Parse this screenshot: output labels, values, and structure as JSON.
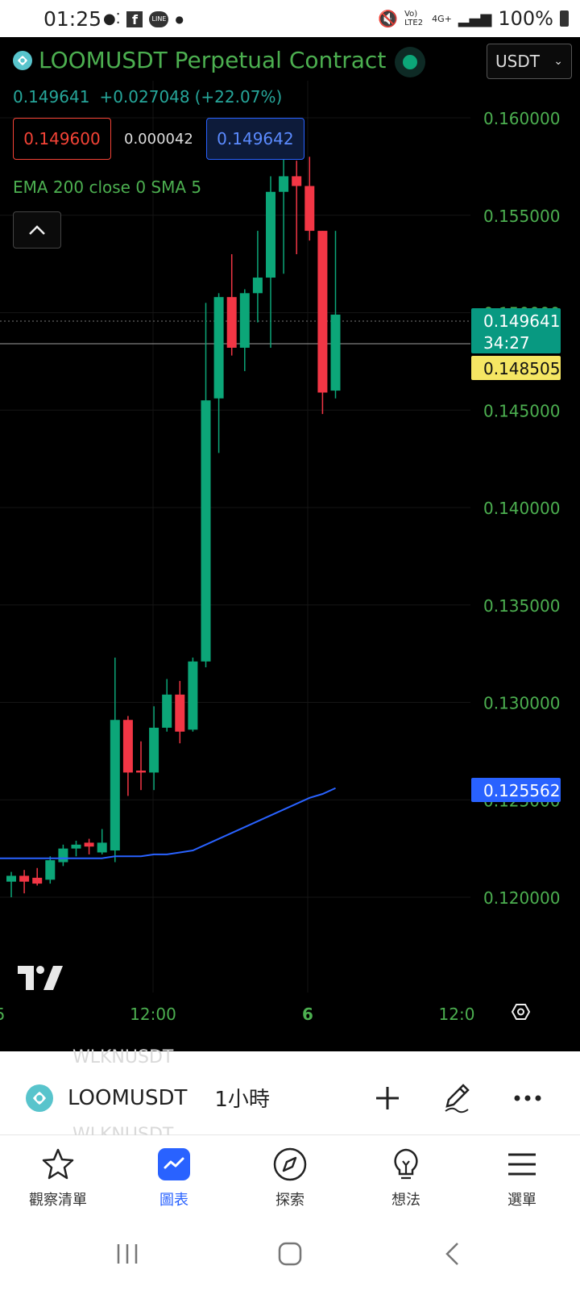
{
  "status_bar": {
    "time": "01:25",
    "signal_label": "Vo) LTE2",
    "network_label": "4G+",
    "battery": "100%"
  },
  "header": {
    "title": "LOOMUSDT Perpetual Contract",
    "currency": "USDT",
    "last_price": "0.149641",
    "change": "+0.027048",
    "change_pct": "(+22.07%)",
    "bid": "0.149600",
    "spread": "0.000042",
    "ask": "0.149642",
    "indicator": "EMA 200 close 0 SMA 5"
  },
  "chart_data": {
    "type": "candlestick",
    "price_axis": [
      "0.160000",
      "0.155000",
      "0.150000",
      "0.145000",
      "0.140000",
      "0.135000",
      "0.130000",
      "0.125000",
      "0.120000"
    ],
    "time_axis": [
      "5",
      "12:00",
      "6",
      "12:0"
    ],
    "ylim": [
      0.1168,
      0.1636
    ],
    "current_price_tag": "0.149641",
    "countdown": "34:27",
    "highlight_tag": "0.148505",
    "ema_tag": "0.125562",
    "colors": {
      "up": "#0ca678",
      "down": "#f23645",
      "ema": "#2962ff",
      "axis_text": "#4caf50"
    },
    "candles": [
      {
        "o": 0.1208,
        "h": 0.1213,
        "l": 0.12,
        "c": 0.1211
      },
      {
        "o": 0.1211,
        "h": 0.1214,
        "l": 0.1202,
        "c": 0.1208
      },
      {
        "o": 0.121,
        "h": 0.1215,
        "l": 0.1206,
        "c": 0.1207
      },
      {
        "o": 0.1209,
        "h": 0.1221,
        "l": 0.1207,
        "c": 0.1219
      },
      {
        "o": 0.1218,
        "h": 0.1227,
        "l": 0.1216,
        "c": 0.1225
      },
      {
        "o": 0.1225,
        "h": 0.1229,
        "l": 0.1221,
        "c": 0.1227
      },
      {
        "o": 0.1228,
        "h": 0.123,
        "l": 0.1222,
        "c": 0.1226
      },
      {
        "o": 0.1223,
        "h": 0.1235,
        "l": 0.1222,
        "c": 0.1228
      },
      {
        "o": 0.1224,
        "h": 0.1323,
        "l": 0.1218,
        "c": 0.1291
      },
      {
        "o": 0.1291,
        "h": 0.1293,
        "l": 0.1252,
        "c": 0.1264
      },
      {
        "o": 0.1265,
        "h": 0.128,
        "l": 0.1255,
        "c": 0.1264
      },
      {
        "o": 0.1264,
        "h": 0.1298,
        "l": 0.1255,
        "c": 0.1287
      },
      {
        "o": 0.1287,
        "h": 0.1312,
        "l": 0.1285,
        "c": 0.1304
      },
      {
        "o": 0.1304,
        "h": 0.1311,
        "l": 0.1279,
        "c": 0.1285
      },
      {
        "o": 0.1286,
        "h": 0.1323,
        "l": 0.1285,
        "c": 0.1321
      },
      {
        "o": 0.1321,
        "h": 0.1505,
        "l": 0.1318,
        "c": 0.1455
      },
      {
        "o": 0.1456,
        "h": 0.151,
        "l": 0.1428,
        "c": 0.1508
      },
      {
        "o": 0.1508,
        "h": 0.153,
        "l": 0.1478,
        "c": 0.1482
      },
      {
        "o": 0.1482,
        "h": 0.1512,
        "l": 0.147,
        "c": 0.151
      },
      {
        "o": 0.151,
        "h": 0.1542,
        "l": 0.1495,
        "c": 0.1518
      },
      {
        "o": 0.1518,
        "h": 0.157,
        "l": 0.1482,
        "c": 0.1562
      },
      {
        "o": 0.1562,
        "h": 0.158,
        "l": 0.152,
        "c": 0.157
      },
      {
        "o": 0.157,
        "h": 0.1578,
        "l": 0.153,
        "c": 0.1565
      },
      {
        "o": 0.1565,
        "h": 0.158,
        "l": 0.1537,
        "c": 0.1542
      },
      {
        "o": 0.1542,
        "h": 0.1542,
        "l": 0.1448,
        "c": 0.1459
      },
      {
        "o": 0.146,
        "h": 0.1542,
        "l": 0.1456,
        "c": 0.1499
      }
    ],
    "ema": [
      0.122,
      0.122,
      0.122,
      0.122,
      0.122,
      0.122,
      0.122,
      0.122,
      0.1221,
      0.1221,
      0.1221,
      0.1222,
      0.1222,
      0.1223,
      0.1224,
      0.1227,
      0.123,
      0.1233,
      0.1236,
      0.1239,
      0.1242,
      0.1245,
      0.1248,
      0.1251,
      0.1253,
      0.1256
    ]
  },
  "toolbar": {
    "symbol": "LOOMUSDT",
    "interval": "1小時",
    "ghost_top": "WLKNUSDT",
    "ghost_bottom": "WLKNUSDT"
  },
  "nav": {
    "items": [
      {
        "label": "觀察清單",
        "icon": "star-icon"
      },
      {
        "label": "圖表",
        "icon": "chart-icon"
      },
      {
        "label": "探索",
        "icon": "compass-icon"
      },
      {
        "label": "想法",
        "icon": "lightbulb-icon"
      },
      {
        "label": "選單",
        "icon": "menu-icon"
      }
    ],
    "active": "圖表"
  }
}
